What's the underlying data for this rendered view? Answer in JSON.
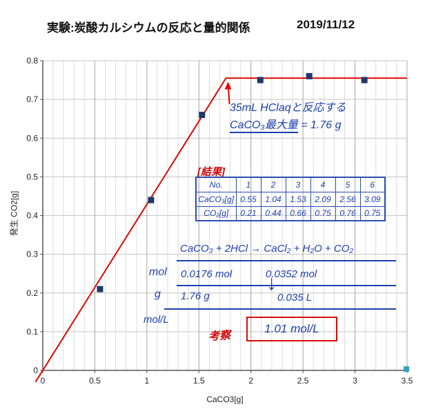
{
  "header": {
    "title": "実験:炭酸カルシウムの反応と量的関係",
    "date": "2019/11/12"
  },
  "chart_data": {
    "type": "scatter",
    "title": "実験:炭酸カルシウムの反応と量的関係",
    "xlabel": "CaCO3[g]",
    "ylabel": "発生 CO2[g]",
    "xlim": [
      0,
      3.5
    ],
    "ylim": [
      0,
      0.8
    ],
    "xticks": [
      "0",
      "0.5",
      "1",
      "1.5",
      "2",
      "2.5",
      "3",
      "3.5"
    ],
    "yticks": [
      "0",
      "0.1",
      "0.2",
      "0.3",
      "0.4",
      "0.5",
      "0.6",
      "0.7",
      "0.8"
    ],
    "points": {
      "x": [
        0.55,
        1.04,
        1.53,
        2.09,
        2.56,
        3.09
      ],
      "y": [
        0.21,
        0.44,
        0.66,
        0.75,
        0.76,
        0.75
      ]
    },
    "fit_line": {
      "type": "piecewise-linear",
      "bend_x": 1.76,
      "plateau_y": 0.755,
      "segments": [
        [
          [
            0,
            0
          ],
          [
            1.76,
            0.755
          ]
        ],
        [
          [
            1.76,
            0.755
          ],
          [
            3.5,
            0.755
          ]
        ]
      ]
    },
    "grid": true,
    "point_color": "#1f3868",
    "line_color": "#e10600"
  },
  "annotations": {
    "arrow_note": {
      "line1": "35mL HClaqと反応する",
      "line2_underlined": "CaCO₃最大量",
      "line2_rest": "= 1.76 g"
    },
    "results_label": "[結果]",
    "results_table": {
      "header": [
        "No.",
        "1",
        "2",
        "3",
        "4",
        "5",
        "6"
      ],
      "rows": [
        {
          "label": "CaCO₃[g]",
          "values": [
            "0.55",
            "1.04",
            "1.53",
            "2.09",
            "2.56",
            "3.09"
          ]
        },
        {
          "label": "CO₂[g]",
          "values": [
            "0.21",
            "0.44",
            "0.66",
            "0.75",
            "0.76",
            "0.75"
          ]
        }
      ]
    },
    "equation": "CaCO₃ + 2HCl → CaCl₂ + H₂O + CO₂",
    "calc": {
      "row_mol_label": "mol",
      "mol_left": "0.0176 mol",
      "mol_right": "0.0352 mol",
      "row_g_label": "g",
      "g_left": "1.76 g",
      "down_arrow": "↓",
      "volume": "0.035 L",
      "row_molL_label": "mol/L",
      "consideration_label": "考察",
      "answer": "1.01 mol/L"
    },
    "handle_color": "#35a3b8"
  }
}
